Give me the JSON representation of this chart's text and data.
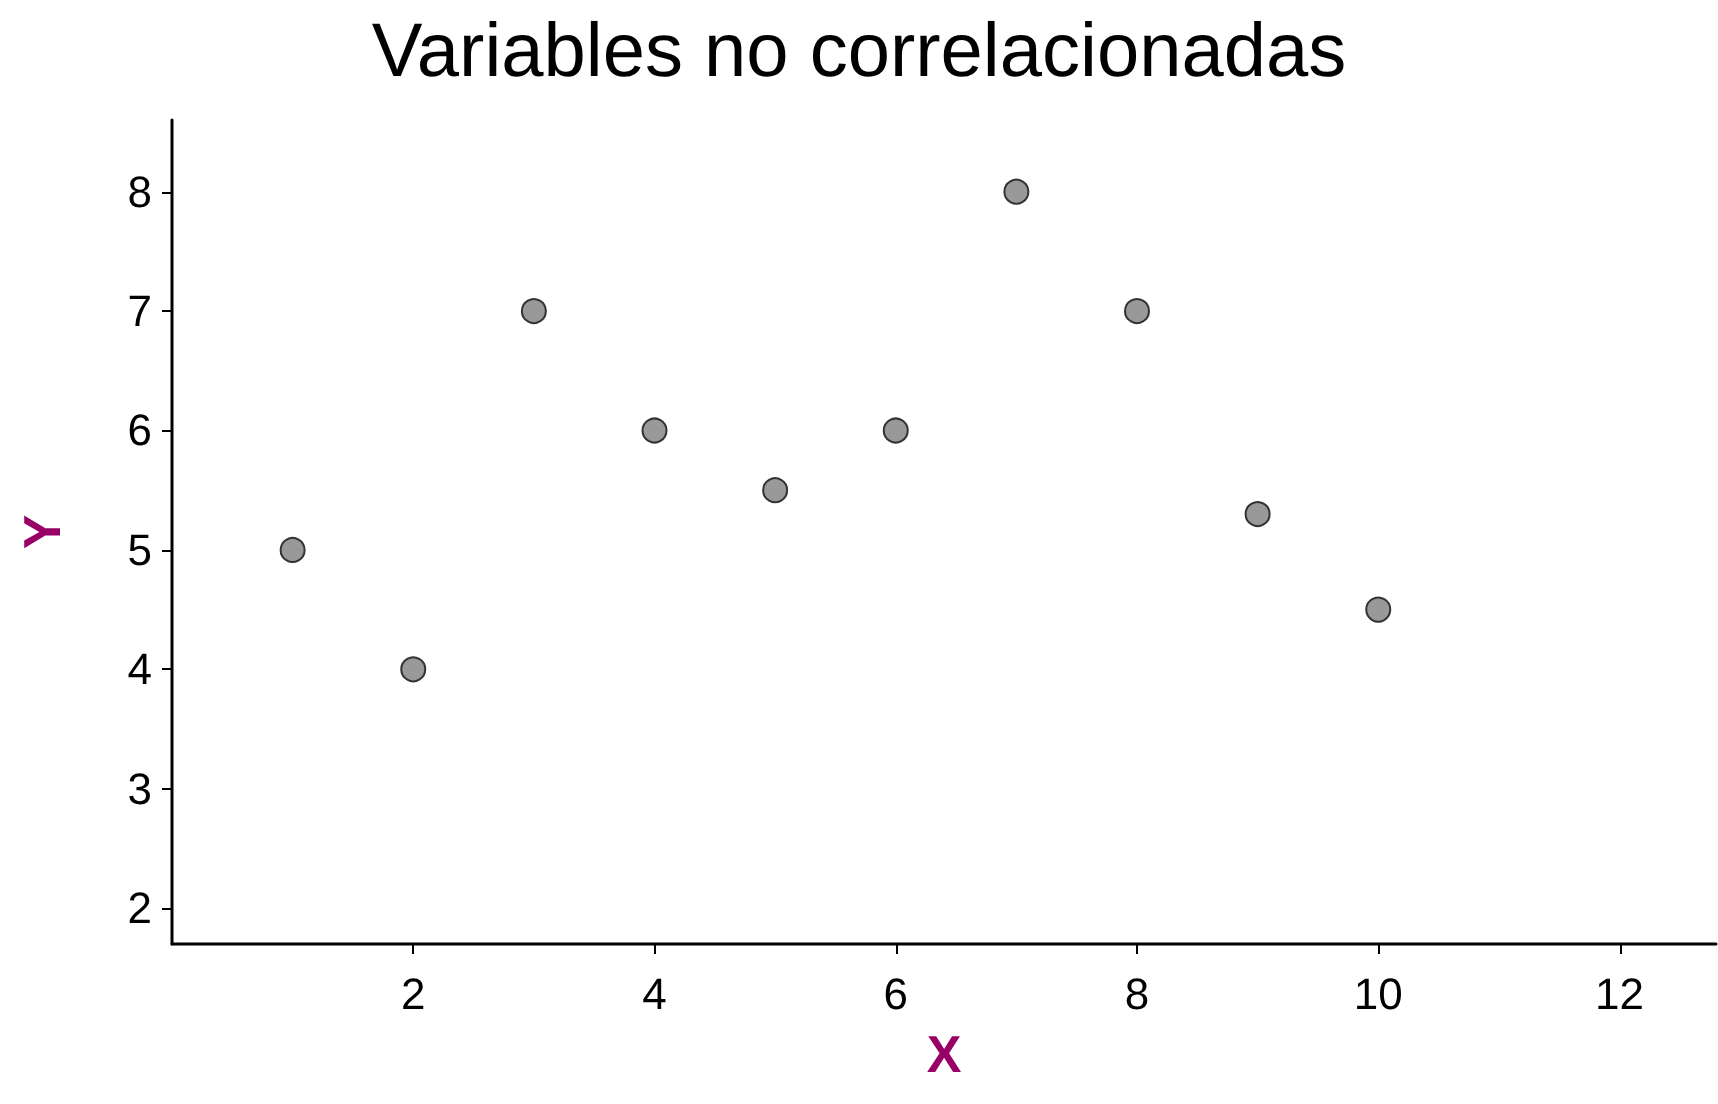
{
  "chart_data": {
    "type": "scatter",
    "title": "Variables no correlacionadas",
    "xlabel": "X",
    "ylabel": "Y",
    "x": [
      1,
      2,
      3,
      4,
      5,
      6,
      7,
      8,
      9,
      10
    ],
    "series": [
      {
        "color": "#999999",
        "values": [
          5,
          4,
          7,
          6,
          5.5,
          6,
          8,
          7,
          5.3,
          4.5
        ]
      }
    ],
    "xlim": [
      0,
      12.8
    ],
    "xticks": [
      2,
      4,
      6,
      8,
      10,
      12
    ],
    "ylim": [
      1.7,
      8.6
    ],
    "yticks": [
      2,
      3,
      4,
      5,
      6,
      7,
      8
    ],
    "marker": "circle",
    "grid": false
  }
}
